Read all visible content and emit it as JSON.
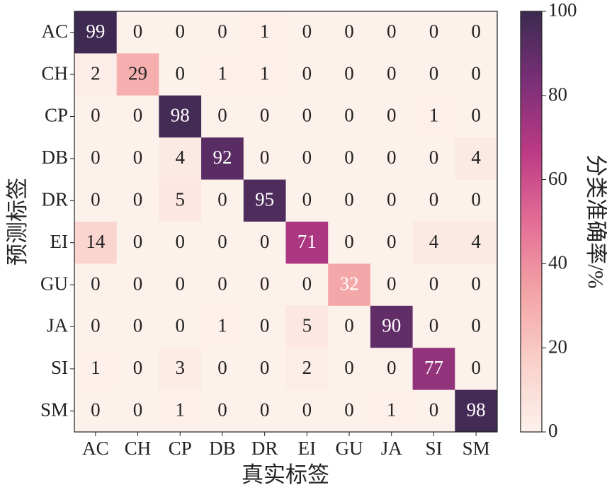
{
  "chart_data": {
    "type": "heatmap",
    "xlabel": "真实标签",
    "ylabel": "预测标签",
    "x": [
      "AC",
      "CH",
      "CP",
      "DB",
      "DR",
      "EI",
      "GU",
      "JA",
      "SI",
      "SM"
    ],
    "y": [
      "AC",
      "CH",
      "CP",
      "DB",
      "DR",
      "EI",
      "GU",
      "JA",
      "SI",
      "SM"
    ],
    "z": [
      [
        99,
        0,
        0,
        0,
        1,
        0,
        0,
        0,
        0,
        0
      ],
      [
        2,
        29,
        0,
        1,
        1,
        0,
        0,
        0,
        0,
        0
      ],
      [
        0,
        0,
        98,
        0,
        0,
        0,
        0,
        0,
        1,
        0
      ],
      [
        0,
        0,
        4,
        92,
        0,
        0,
        0,
        0,
        0,
        4
      ],
      [
        0,
        0,
        5,
        0,
        95,
        0,
        0,
        0,
        0,
        0
      ],
      [
        14,
        0,
        0,
        0,
        0,
        71,
        0,
        0,
        4,
        4
      ],
      [
        0,
        0,
        0,
        0,
        0,
        0,
        32,
        0,
        0,
        0
      ],
      [
        0,
        0,
        0,
        1,
        0,
        5,
        0,
        90,
        0,
        0
      ],
      [
        1,
        0,
        3,
        0,
        0,
        2,
        0,
        0,
        77,
        0
      ],
      [
        0,
        0,
        1,
        0,
        0,
        0,
        0,
        1,
        0,
        98
      ]
    ],
    "colorbar": {
      "label": "分类准确率/%",
      "clim": [
        0,
        100
      ],
      "cticks": [
        0,
        20,
        40,
        60,
        80,
        100
      ]
    },
    "colormap": [
      "#fdf1ec",
      "#f9d0c9",
      "#f3a3a5",
      "#e36d96",
      "#bc3a85",
      "#7a2f77",
      "#3b2a50"
    ]
  }
}
